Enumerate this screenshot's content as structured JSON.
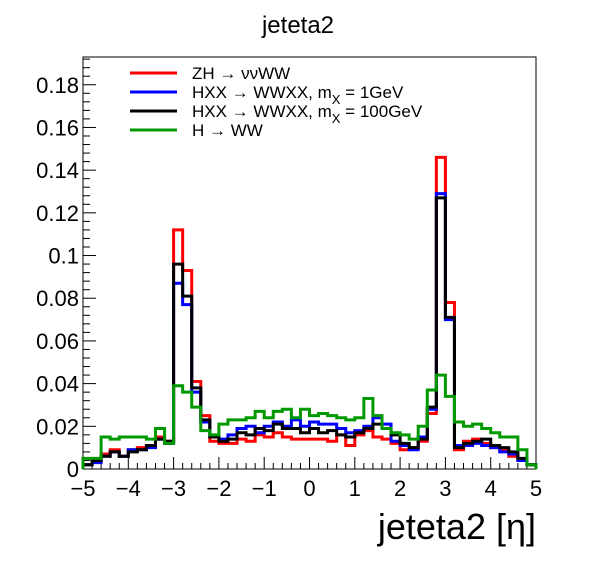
{
  "chart_data": {
    "type": "line",
    "title": "jeteta2",
    "xlabel": "jeteta2 [η]",
    "ylabel": "",
    "xlim": [
      -5,
      5
    ],
    "ylim": [
      0,
      0.193
    ],
    "xticks": [
      -5,
      -4,
      -3,
      -2,
      -1,
      0,
      1,
      2,
      3,
      4,
      5
    ],
    "xtick_labels": [
      "−5",
      "−4",
      "−3",
      "−2",
      "−1",
      "0",
      "1",
      "2",
      "3",
      "4",
      "5"
    ],
    "yticks": [
      0,
      0.02,
      0.04,
      0.06,
      0.08,
      0.1,
      0.12,
      0.14,
      0.16,
      0.18
    ],
    "ytick_labels": [
      "0",
      "0.02",
      "0.04",
      "0.06",
      "0.08",
      "0.1",
      "0.12",
      "0.14",
      "0.16",
      "0.18"
    ],
    "bin_edges": [
      -5,
      -4.8,
      -4.6,
      -4.4,
      -4.2,
      -4,
      -3.8,
      -3.6,
      -3.4,
      -3.2,
      -3,
      -2.8,
      -2.6,
      -2.4,
      -2.2,
      -2,
      -1.8,
      -1.6,
      -1.4,
      -1.2,
      -1,
      -0.8,
      -0.6,
      -0.4,
      -0.2,
      0,
      0.2,
      0.4,
      0.6,
      0.8,
      1,
      1.2,
      1.4,
      1.6,
      1.8,
      2,
      2.2,
      2.4,
      2.6,
      2.8,
      3,
      3.2,
      3.4,
      3.6,
      3.8,
      4,
      4.2,
      4.4,
      4.6,
      4.8,
      5
    ],
    "grid": false,
    "legend_position": "top-left",
    "series": [
      {
        "name": "ZH → ννWW",
        "color": "#ff0000",
        "values": [
          0.002,
          0.004,
          0.007,
          0.009,
          0.006,
          0.009,
          0.01,
          0.011,
          0.015,
          0.013,
          0.112,
          0.093,
          0.041,
          0.025,
          0.013,
          0.012,
          0.012,
          0.014,
          0.013,
          0.016,
          0.015,
          0.017,
          0.015,
          0.014,
          0.014,
          0.014,
          0.014,
          0.013,
          0.016,
          0.011,
          0.016,
          0.018,
          0.015,
          0.014,
          0.012,
          0.009,
          0.01,
          0.013,
          0.026,
          0.146,
          0.078,
          0.009,
          0.013,
          0.014,
          0.012,
          0.01,
          0.009,
          0.006,
          0.004,
          0.002
        ]
      },
      {
        "name": "HXX → WWXX, m",
        "name_sub": "X",
        "name_tail": " = 1GeV",
        "color": "#0000ff",
        "values": [
          0.002,
          0.003,
          0.006,
          0.008,
          0.006,
          0.009,
          0.009,
          0.01,
          0.014,
          0.012,
          0.087,
          0.077,
          0.036,
          0.022,
          0.015,
          0.014,
          0.016,
          0.019,
          0.02,
          0.017,
          0.02,
          0.022,
          0.02,
          0.023,
          0.02,
          0.022,
          0.021,
          0.021,
          0.019,
          0.017,
          0.018,
          0.02,
          0.024,
          0.021,
          0.013,
          0.011,
          0.009,
          0.015,
          0.028,
          0.129,
          0.07,
          0.011,
          0.011,
          0.012,
          0.011,
          0.01,
          0.008,
          0.007,
          0.004,
          0.002
        ]
      },
      {
        "name": "HXX → WWXX, m",
        "name_sub": "X",
        "name_tail": " = 100GeV",
        "color": "#000000",
        "values": [
          0.002,
          0.004,
          0.006,
          0.008,
          0.006,
          0.008,
          0.009,
          0.011,
          0.014,
          0.013,
          0.096,
          0.081,
          0.038,
          0.023,
          0.015,
          0.013,
          0.014,
          0.017,
          0.016,
          0.019,
          0.018,
          0.021,
          0.019,
          0.019,
          0.017,
          0.019,
          0.017,
          0.018,
          0.016,
          0.015,
          0.017,
          0.019,
          0.021,
          0.019,
          0.016,
          0.012,
          0.01,
          0.014,
          0.029,
          0.127,
          0.071,
          0.01,
          0.012,
          0.013,
          0.014,
          0.011,
          0.01,
          0.008,
          0.005,
          0.002
        ]
      },
      {
        "name": "H → WW",
        "color": "#009900",
        "values": [
          0.005,
          0.005,
          0.015,
          0.014,
          0.015,
          0.015,
          0.015,
          0.014,
          0.019,
          0.012,
          0.039,
          0.036,
          0.029,
          0.018,
          0.016,
          0.021,
          0.023,
          0.023,
          0.024,
          0.027,
          0.024,
          0.027,
          0.028,
          0.024,
          0.028,
          0.025,
          0.026,
          0.025,
          0.024,
          0.023,
          0.024,
          0.033,
          0.025,
          0.019,
          0.017,
          0.016,
          0.014,
          0.02,
          0.037,
          0.044,
          0.034,
          0.022,
          0.02,
          0.021,
          0.019,
          0.017,
          0.015,
          0.015,
          0.009,
          0.002
        ]
      }
    ]
  }
}
